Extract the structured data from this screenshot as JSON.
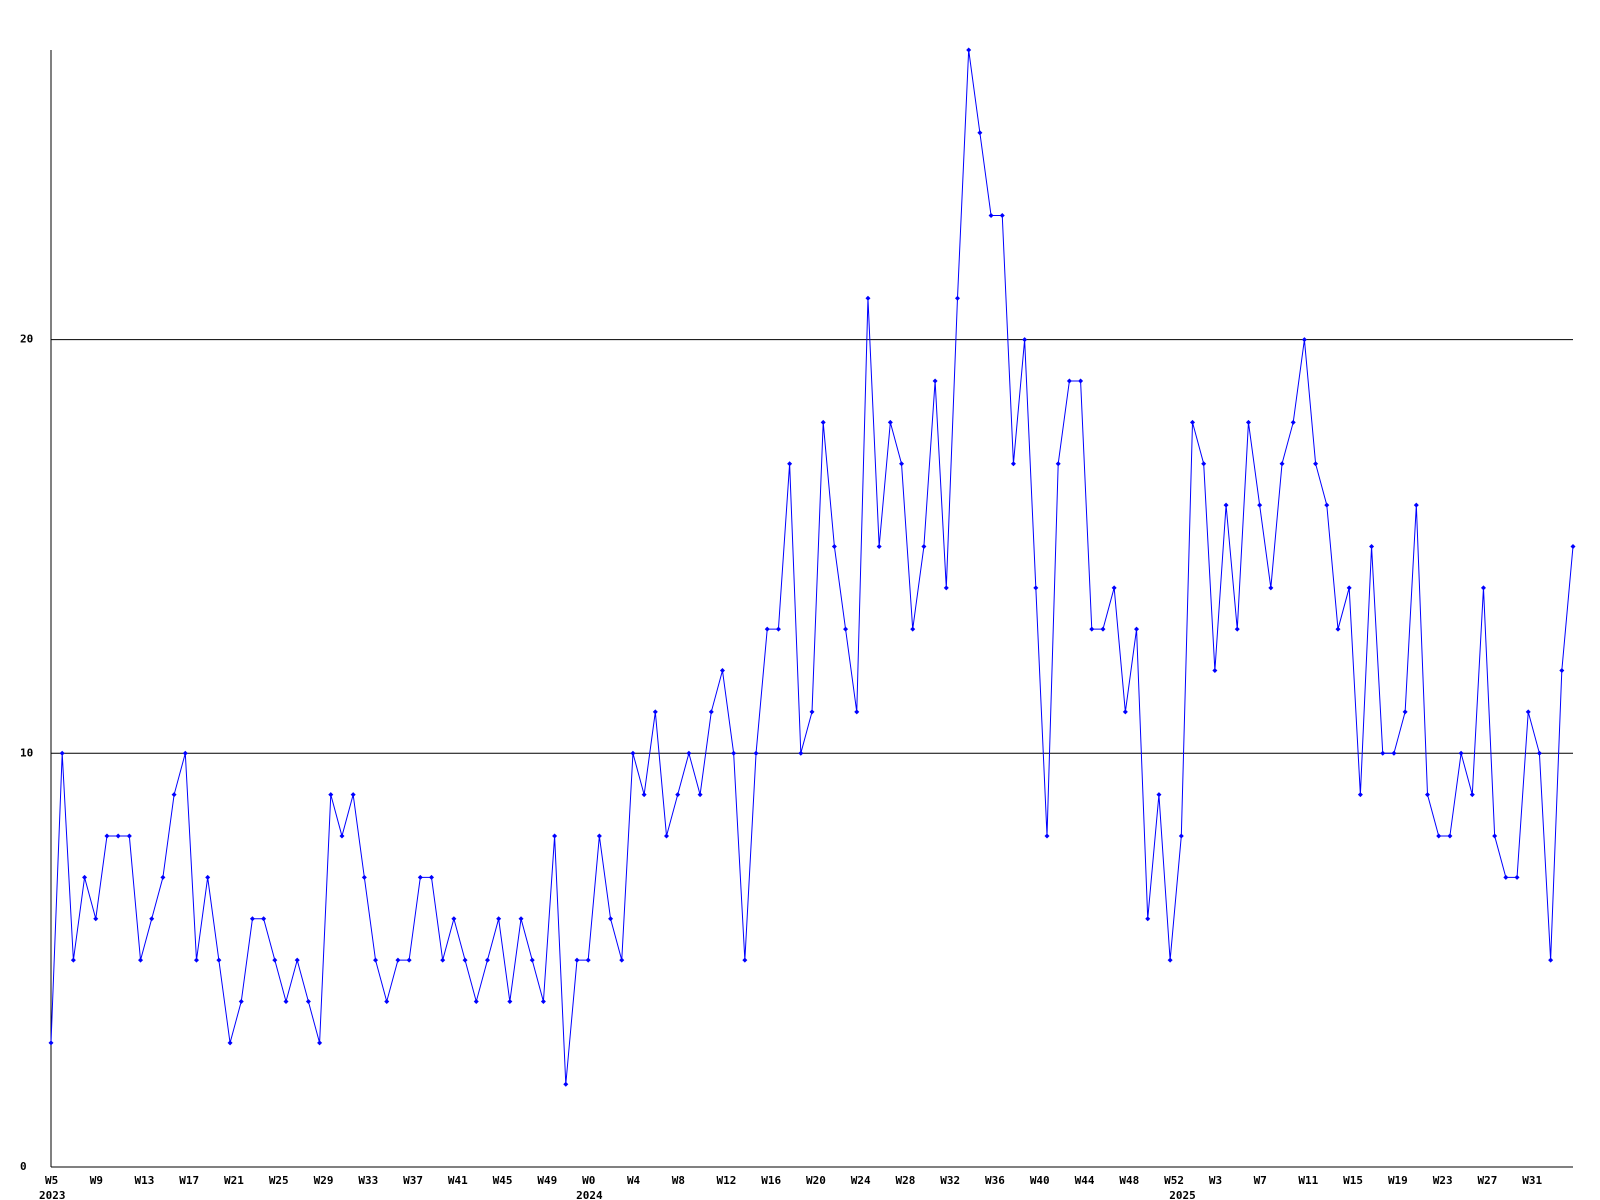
{
  "chart_data": {
    "type": "line",
    "categories": [
      "W5",
      null,
      null,
      null,
      "W9",
      null,
      null,
      null,
      "W13",
      null,
      null,
      null,
      "W17",
      null,
      null,
      null,
      "W21",
      null,
      null,
      null,
      "W25",
      null,
      null,
      null,
      "W29",
      null,
      null,
      null,
      "W33",
      null,
      null,
      null,
      "W37",
      null,
      null,
      null,
      "W41",
      null,
      null,
      null,
      "W45",
      null,
      null,
      null,
      "W49",
      null,
      null,
      null,
      "W0",
      null,
      null,
      null,
      "W4",
      null,
      null,
      null,
      "W8",
      null,
      null,
      null,
      "W12",
      null,
      null,
      null,
      "W16",
      null,
      null,
      null,
      "W20",
      null,
      null,
      null,
      "W24",
      null,
      null,
      null,
      "W28",
      null,
      null,
      null,
      "W32",
      null,
      null,
      null,
      "W36",
      null,
      null,
      null,
      "W40",
      null,
      null,
      null,
      "W44",
      null,
      null,
      null,
      "W48",
      null,
      null,
      null,
      "W52",
      null,
      null,
      null,
      "W3",
      null,
      null,
      null,
      "W7",
      null,
      null,
      null,
      "W11",
      null,
      null,
      null,
      "W15",
      null,
      null,
      null,
      "W19",
      null,
      null,
      null,
      "W23",
      null,
      null,
      null,
      "W27",
      null,
      null,
      null,
      "W31",
      null,
      null,
      null,
      null
    ],
    "year_labels": [
      {
        "at": 0,
        "label": "2023"
      },
      {
        "at": 48,
        "label": "2024"
      },
      {
        "at": 101,
        "label": "2025"
      }
    ],
    "series": [
      {
        "color": "#0000ff",
        "values": [
          3,
          10,
          5,
          7,
          6,
          8,
          8,
          8,
          5,
          6,
          7,
          9,
          10,
          5,
          7,
          5,
          3,
          4,
          6,
          6,
          5,
          4,
          5,
          4,
          3,
          9,
          8,
          9,
          7,
          5,
          4,
          5,
          5,
          7,
          7,
          5,
          6,
          5,
          4,
          5,
          6,
          4,
          6,
          5,
          4,
          8,
          2,
          5,
          5,
          8,
          6,
          5,
          10,
          9,
          11,
          8,
          9,
          10,
          9,
          11,
          12,
          10,
          5,
          10,
          13,
          13,
          17,
          10,
          11,
          18,
          15,
          13,
          11,
          21,
          15,
          18,
          17,
          13,
          15,
          19,
          14,
          21,
          27,
          25,
          23,
          23,
          17,
          20,
          14,
          8,
          17,
          19,
          19,
          13,
          13,
          14,
          11,
          13,
          6,
          9,
          5,
          8,
          18,
          17,
          12,
          16,
          13,
          18,
          16,
          14,
          17,
          18,
          20,
          17,
          16,
          13,
          14,
          9,
          15,
          10,
          10,
          11,
          16,
          9,
          8,
          8,
          10,
          9,
          14,
          8,
          7,
          7,
          11,
          10,
          5,
          12,
          15
        ]
      }
    ],
    "ylim": [
      0,
      27
    ],
    "yticks": [
      0,
      10,
      20
    ],
    "grid": true
  }
}
